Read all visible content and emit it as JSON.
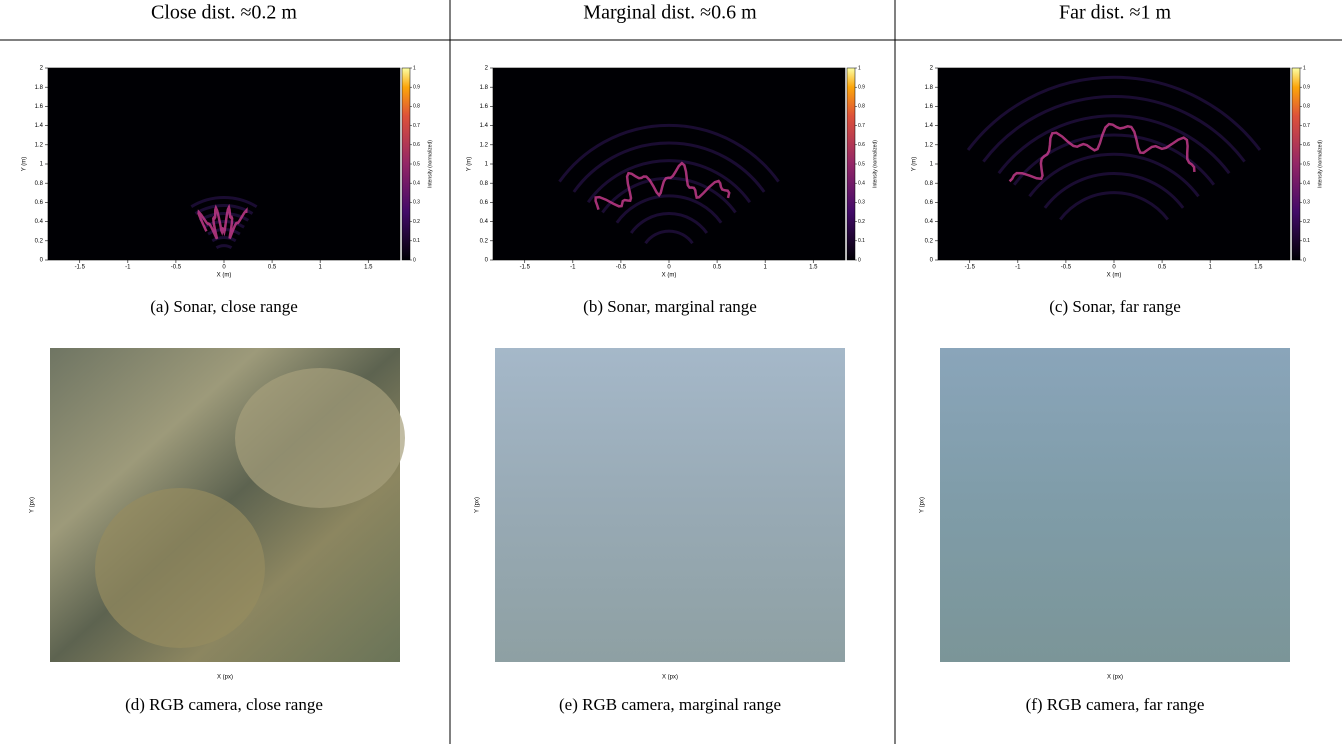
{
  "header": [
    "Close dist. ≈0.2 m",
    "Marginal dist. ≈0.6 m",
    "Far dist. ≈1 m"
  ],
  "panels": [
    {
      "sonar": {
        "xlabel": "X (m)",
        "ylabel": "Y (m)",
        "colorbar_label": "Intensity (normalized)",
        "xlim": [
          -1.83,
          1.83
        ],
        "ylim": [
          0,
          2
        ],
        "xticks": [
          -1.5,
          -1,
          -0.5,
          0,
          0.5,
          1,
          1.5
        ],
        "yticks": [
          0,
          0.2,
          0.4,
          0.6,
          0.8,
          1,
          1.2,
          1.4,
          1.6,
          1.8,
          2
        ],
        "clim": [
          0,
          1
        ],
        "cticks": [
          0,
          0.1,
          0.2,
          0.3,
          0.4,
          0.5,
          0.6,
          0.7,
          0.8,
          0.9,
          1
        ]
      },
      "sonar_caption": "(a) Sonar, close range",
      "camera": {
        "xlabel": "X (px)",
        "ylabel": "Y (px)"
      },
      "camera_caption": "(d) RGB camera, close range"
    },
    {
      "sonar": {
        "xlabel": "X (m)",
        "ylabel": "Y (m)",
        "colorbar_label": "Intensity (normalized)",
        "xlim": [
          -1.83,
          1.83
        ],
        "ylim": [
          0,
          2
        ],
        "xticks": [
          -1.5,
          -1,
          -0.5,
          0,
          0.5,
          1,
          1.5
        ],
        "yticks": [
          0,
          0.2,
          0.4,
          0.6,
          0.8,
          1,
          1.2,
          1.4,
          1.6,
          1.8,
          2
        ],
        "clim": [
          0,
          1
        ],
        "cticks": [
          0,
          0.1,
          0.2,
          0.3,
          0.4,
          0.5,
          0.6,
          0.7,
          0.8,
          0.9,
          1
        ]
      },
      "sonar_caption": "(b) Sonar, marginal range",
      "camera": {
        "xlabel": "X (px)",
        "ylabel": "Y (px)"
      },
      "camera_caption": "(e) RGB camera, marginal range"
    },
    {
      "sonar": {
        "xlabel": "X (m)",
        "ylabel": "Y (m)",
        "colorbar_label": "Intensity (normalized)",
        "xlim": [
          -1.83,
          1.83
        ],
        "ylim": [
          0,
          2
        ],
        "xticks": [
          -1.5,
          -1,
          -0.5,
          0,
          0.5,
          1,
          1.5
        ],
        "yticks": [
          0,
          0.2,
          0.4,
          0.6,
          0.8,
          1,
          1.2,
          1.4,
          1.6,
          1.8,
          2
        ],
        "clim": [
          0,
          1
        ],
        "cticks": [
          0,
          0.1,
          0.2,
          0.3,
          0.4,
          0.5,
          0.6,
          0.7,
          0.8,
          0.9,
          1
        ]
      },
      "sonar_caption": "(c) Sonar, far range",
      "camera": {
        "xlabel": "X (px)",
        "ylabel": "Y (px)"
      },
      "camera_caption": "(f) RGB camera, far range"
    }
  ]
}
